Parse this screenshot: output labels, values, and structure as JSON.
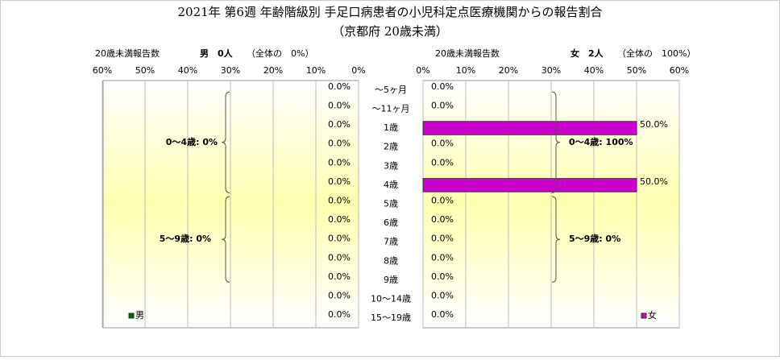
{
  "chart_data": {
    "type": "butterfly",
    "title": "2021年 第6週 年齢階級別 手足口病患者の小児科定点医療機関からの報告割合",
    "subtitle": "（京都府 20歳未満）",
    "left_header": [
      "20歳未満報告数",
      "男　0人",
      "（全体の　0%）"
    ],
    "right_header": [
      "20歳未満報告数",
      "女　2人",
      "（全体の　100%）"
    ],
    "categories": [
      "～5ヶ月",
      "～11ヶ月",
      "1歳",
      "2歳",
      "3歳",
      "4歳",
      "5歳",
      "6歳",
      "7歳",
      "8歳",
      "9歳",
      "10～14歳",
      "15～19歳"
    ],
    "series": [
      {
        "name": "男",
        "color": "#006600",
        "values": [
          0,
          0,
          0,
          0,
          0,
          0,
          0,
          0,
          0,
          0,
          0,
          0,
          0
        ],
        "value_labels": [
          "0.0%",
          "0.0%",
          "0.0%",
          "0.0%",
          "0.0%",
          "0.0%",
          "0.0%",
          "0.0%",
          "0.0%",
          "0.0%",
          "0.0%",
          "0.0%",
          "0.0%"
        ]
      },
      {
        "name": "女",
        "color": "#cc00cc",
        "values": [
          0,
          0,
          50,
          0,
          0,
          50,
          0,
          0,
          0,
          0,
          0,
          0,
          0
        ],
        "value_labels": [
          "0.0%",
          "0.0%",
          "50.0%",
          "0.0%",
          "0.0%",
          "50.0%",
          "0.0%",
          "0.0%",
          "0.0%",
          "0.0%",
          "0.0%",
          "0.0%",
          "0.0%"
        ]
      }
    ],
    "xlim": [
      0,
      60
    ],
    "xticks": [
      {
        "value": 0,
        "label": "0%"
      },
      {
        "value": 10,
        "label": "10%"
      },
      {
        "value": 20,
        "label": "20%"
      },
      {
        "value": 30,
        "label": "30%"
      },
      {
        "value": 40,
        "label": "40%"
      },
      {
        "value": 50,
        "label": "50%"
      },
      {
        "value": 60,
        "label": "60%"
      }
    ],
    "grid": true,
    "annotations": [
      "0～4歳: 0%",
      "5～9歳: 0%",
      "0～4歳: 100%",
      "5～9歳: 0%"
    ]
  }
}
